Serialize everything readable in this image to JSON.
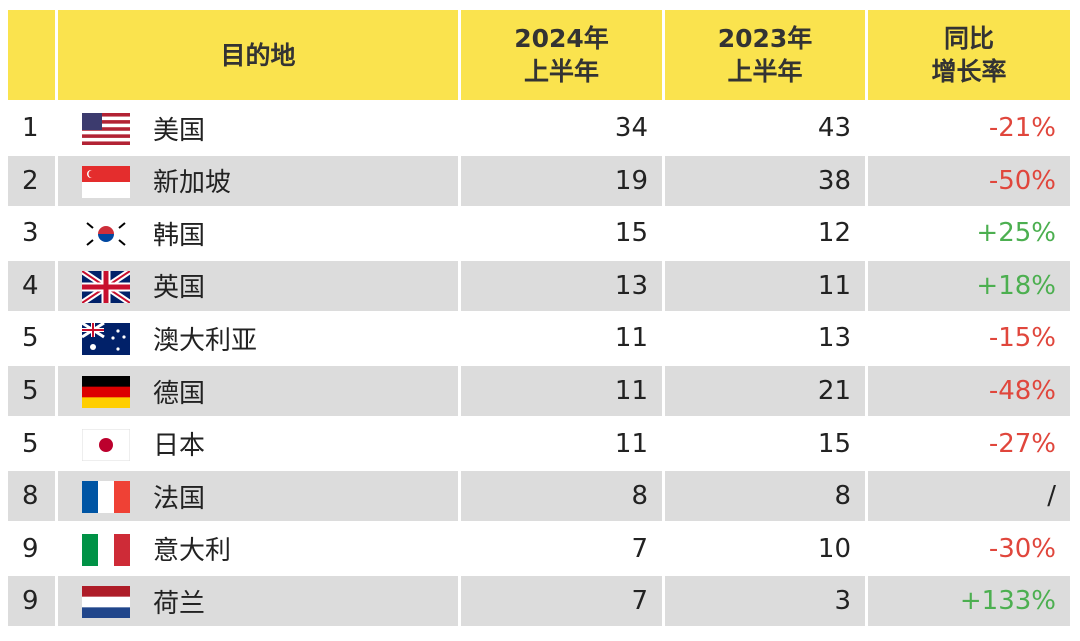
{
  "table": {
    "header": {
      "destination": "目的地",
      "h2024": "2024年\n上半年",
      "h2023": "2023年\n上半年",
      "growth": "同比\n增长率"
    },
    "rows": [
      {
        "rank": 1,
        "country": "美国",
        "v2024": 34,
        "v2023": 43,
        "growth": "-21%"
      },
      {
        "rank": 2,
        "country": "新加坡",
        "v2024": 19,
        "v2023": 38,
        "growth": "-50%"
      },
      {
        "rank": 3,
        "country": "韩国",
        "v2024": 15,
        "v2023": 12,
        "growth": "+25%"
      },
      {
        "rank": 4,
        "country": "英国",
        "v2024": 13,
        "v2023": 11,
        "growth": "+18%"
      },
      {
        "rank": 5,
        "country": "澳大利亚",
        "v2024": 11,
        "v2023": 13,
        "growth": "-15%"
      },
      {
        "rank": 5,
        "country": "德国",
        "v2024": 11,
        "v2023": 21,
        "growth": "-48%"
      },
      {
        "rank": 5,
        "country": "日本",
        "v2024": 11,
        "v2023": 15,
        "growth": "-27%"
      },
      {
        "rank": 8,
        "country": "法国",
        "v2024": 8,
        "v2023": 8,
        "growth": "/"
      },
      {
        "rank": 9,
        "country": "意大利",
        "v2024": 7,
        "v2023": 10,
        "growth": "-30%"
      },
      {
        "rank": 9,
        "country": "荷兰",
        "v2024": 7,
        "v2023": 3,
        "growth": "+133%"
      }
    ]
  }
}
